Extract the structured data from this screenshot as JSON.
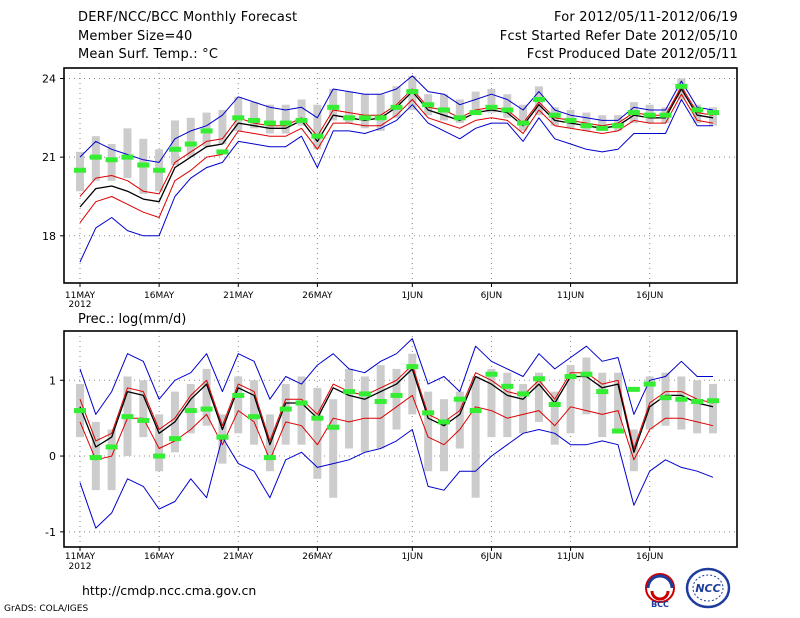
{
  "header": {
    "title": "DERF/NCC/BCC Monthly Forecast",
    "member_size": "Member Size=40",
    "variable": "Mean Surf. Temp.: °C",
    "period": "For 2012/05/11-2012/06/19",
    "refer_date": "Fcst Started Refer Date 2012/05/10",
    "produced_date": "Fcst Produced Date 2012/05/11"
  },
  "footer": {
    "url": "http://cmdp.ncc.cma.gov.cn",
    "grads": "GrADS: COLA/IGES",
    "logo_bcc": "BCC",
    "logo_ncc": "NCC"
  },
  "colors": {
    "max_min": "#0000cc",
    "spread": "#dd0000",
    "mean": "#000000",
    "box": "#cccccc",
    "median": "#33ee33",
    "grid": "#888888"
  },
  "chart_data": [
    {
      "type": "line",
      "title": "Mean Surf. Temp.: °C",
      "x_ticks": [
        "11MAY",
        "16MAY",
        "21MAY",
        "26MAY",
        "1JUN",
        "6JUN",
        "11JUN",
        "16JUN"
      ],
      "x_year": "2012",
      "tick_days": [
        0,
        5,
        10,
        15,
        21,
        26,
        31,
        36
      ],
      "ylim": [
        16.2,
        24.4
      ],
      "yticks": [
        18,
        21,
        24
      ],
      "series": [
        {
          "name": "max",
          "values": [
            21.0,
            21.6,
            21.3,
            21.1,
            20.9,
            20.8,
            21.7,
            22.0,
            22.2,
            22.6,
            23.3,
            23.1,
            22.9,
            22.8,
            22.9,
            22.5,
            23.6,
            23.5,
            23.4,
            23.4,
            23.6,
            24.1,
            23.5,
            23.4,
            23.0,
            23.2,
            23.4,
            23.2,
            22.8,
            23.5,
            22.8,
            22.6,
            22.5,
            22.4,
            22.4,
            22.9,
            22.8,
            22.8,
            23.9,
            22.9,
            22.8
          ]
        },
        {
          "name": "spread_high",
          "values": [
            19.5,
            20.2,
            20.3,
            20.1,
            19.7,
            19.6,
            20.8,
            21.2,
            21.6,
            21.7,
            22.5,
            22.3,
            22.2,
            22.2,
            22.5,
            21.8,
            22.8,
            22.7,
            22.6,
            22.6,
            23.0,
            23.6,
            22.9,
            22.8,
            22.5,
            22.8,
            22.9,
            22.8,
            22.3,
            23.1,
            22.5,
            22.4,
            22.3,
            22.2,
            22.3,
            22.7,
            22.6,
            22.6,
            23.7,
            22.7,
            22.6
          ]
        },
        {
          "name": "mean",
          "values": [
            19.1,
            19.8,
            19.9,
            19.7,
            19.4,
            19.3,
            20.6,
            21.0,
            21.4,
            21.5,
            22.3,
            22.2,
            22.1,
            22.1,
            22.4,
            21.6,
            22.6,
            22.5,
            22.4,
            22.5,
            22.9,
            23.5,
            22.8,
            22.6,
            22.4,
            22.7,
            22.8,
            22.7,
            22.2,
            23.0,
            22.4,
            22.3,
            22.2,
            22.1,
            22.2,
            22.6,
            22.5,
            22.5,
            23.6,
            22.6,
            22.5
          ]
        },
        {
          "name": "spread_low",
          "values": [
            18.5,
            19.3,
            19.5,
            19.2,
            18.9,
            18.7,
            20.1,
            20.5,
            21.0,
            21.1,
            22.0,
            21.9,
            21.8,
            21.8,
            22.1,
            21.3,
            22.3,
            22.3,
            22.2,
            22.2,
            22.6,
            23.2,
            22.5,
            22.3,
            22.1,
            22.4,
            22.5,
            22.4,
            21.9,
            22.8,
            22.2,
            22.1,
            22.0,
            21.9,
            22.0,
            22.4,
            22.3,
            22.3,
            23.4,
            22.4,
            22.3
          ]
        },
        {
          "name": "min",
          "values": [
            17.0,
            18.3,
            18.7,
            18.2,
            18.0,
            18.0,
            19.5,
            20.2,
            20.6,
            20.8,
            21.6,
            21.5,
            21.4,
            21.4,
            21.8,
            20.6,
            22.0,
            22.0,
            21.9,
            22.1,
            22.4,
            23.0,
            22.3,
            22.0,
            21.7,
            22.1,
            22.3,
            22.3,
            21.6,
            22.5,
            21.7,
            21.5,
            21.3,
            21.2,
            21.3,
            21.9,
            21.9,
            21.9,
            23.2,
            22.2,
            22.2
          ]
        }
      ],
      "boxes": [
        [
          19.7,
          21.2
        ],
        [
          20.1,
          21.8
        ],
        [
          20.1,
          21.5
        ],
        [
          20.2,
          22.1
        ],
        [
          19.6,
          21.7
        ],
        [
          19.7,
          21.3
        ],
        [
          20.7,
          22.4
        ],
        [
          21.0,
          22.5
        ],
        [
          21.4,
          22.7
        ],
        [
          21.5,
          22.8
        ],
        [
          22.0,
          23.3
        ],
        [
          22.1,
          23.1
        ],
        [
          21.9,
          23.0
        ],
        [
          21.9,
          23.0
        ],
        [
          22.2,
          23.2
        ],
        [
          21.3,
          23.0
        ],
        [
          22.4,
          23.6
        ],
        [
          22.3,
          23.5
        ],
        [
          22.1,
          23.4
        ],
        [
          22.0,
          23.4
        ],
        [
          22.5,
          23.7
        ],
        [
          22.8,
          24.1
        ],
        [
          22.6,
          23.4
        ],
        [
          22.4,
          23.4
        ],
        [
          22.3,
          23.2
        ],
        [
          22.6,
          23.5
        ],
        [
          22.7,
          23.6
        ],
        [
          22.5,
          23.4
        ],
        [
          22.0,
          23.0
        ],
        [
          22.6,
          23.7
        ],
        [
          22.2,
          22.9
        ],
        [
          22.1,
          22.8
        ],
        [
          22.0,
          22.7
        ],
        [
          22.0,
          22.6
        ],
        [
          22.0,
          22.6
        ],
        [
          22.3,
          23.1
        ],
        [
          22.3,
          23.0
        ],
        [
          22.3,
          22.9
        ],
        [
          23.2,
          24.0
        ],
        [
          22.3,
          23.0
        ],
        [
          22.2,
          22.9
        ]
      ],
      "medians": [
        20.5,
        21.0,
        20.9,
        21.0,
        20.7,
        20.5,
        21.3,
        21.5,
        22.0,
        21.2,
        22.5,
        22.4,
        22.3,
        22.3,
        22.4,
        21.8,
        22.9,
        22.5,
        22.5,
        22.5,
        22.9,
        23.5,
        23.0,
        22.8,
        22.5,
        22.7,
        22.9,
        22.8,
        22.3,
        23.2,
        22.6,
        22.4,
        22.2,
        22.1,
        22.2,
        22.7,
        22.6,
        22.6,
        23.7,
        22.8,
        22.7
      ]
    },
    {
      "type": "line",
      "title": "Prec.: log(mm/d)",
      "x_ticks": [
        "11MAY",
        "16MAY",
        "21MAY",
        "26MAY",
        "1JUN",
        "6JUN",
        "11JUN",
        "16JUN"
      ],
      "x_year": "2012",
      "tick_days": [
        0,
        5,
        10,
        15,
        21,
        26,
        31,
        36
      ],
      "ylim": [
        -1.2,
        1.65
      ],
      "yticks": [
        -1,
        0,
        1
      ],
      "series": [
        {
          "name": "max",
          "values": [
            1.15,
            0.55,
            0.85,
            1.35,
            1.25,
            0.75,
            1.0,
            1.1,
            1.35,
            0.85,
            1.35,
            1.25,
            0.75,
            1.05,
            0.95,
            1.2,
            1.35,
            1.15,
            1.1,
            1.25,
            1.35,
            1.55,
            0.95,
            1.05,
            0.85,
            1.45,
            1.25,
            1.15,
            1.05,
            1.35,
            1.15,
            1.3,
            1.45,
            1.25,
            1.3,
            0.55,
            1.0,
            1.05,
            1.25,
            1.05,
            1.05
          ]
        },
        {
          "name": "spread_high",
          "values": [
            0.75,
            0.2,
            0.3,
            0.9,
            0.85,
            0.35,
            0.5,
            0.8,
            1.0,
            0.4,
            0.95,
            0.85,
            0.2,
            0.75,
            0.75,
            0.55,
            0.95,
            0.85,
            0.8,
            0.9,
            1.0,
            1.2,
            0.55,
            0.45,
            0.6,
            1.1,
            1.0,
            0.85,
            0.8,
            1.0,
            0.75,
            1.1,
            1.1,
            0.95,
            1.0,
            0.1,
            0.7,
            0.85,
            0.85,
            0.75,
            0.7
          ]
        },
        {
          "name": "mean",
          "values": [
            0.65,
            0.12,
            0.25,
            0.85,
            0.8,
            0.3,
            0.45,
            0.75,
            0.95,
            0.35,
            0.9,
            0.8,
            0.15,
            0.7,
            0.7,
            0.5,
            0.9,
            0.8,
            0.75,
            0.85,
            0.95,
            1.15,
            0.5,
            0.4,
            0.55,
            1.05,
            0.95,
            0.8,
            0.75,
            0.95,
            0.7,
            1.05,
            1.05,
            0.9,
            0.95,
            0.05,
            0.65,
            0.8,
            0.8,
            0.7,
            0.65
          ]
        },
        {
          "name": "spread_low",
          "values": [
            0.45,
            -0.05,
            0.0,
            0.5,
            0.5,
            0.1,
            0.2,
            0.35,
            0.55,
            0.15,
            0.6,
            0.45,
            -0.05,
            0.45,
            0.4,
            0.15,
            0.5,
            0.45,
            0.5,
            0.5,
            0.65,
            0.8,
            0.25,
            0.15,
            0.35,
            0.65,
            0.6,
            0.5,
            0.55,
            0.6,
            0.4,
            0.65,
            0.6,
            0.55,
            0.6,
            -0.05,
            0.35,
            0.5,
            0.5,
            0.45,
            0.4
          ]
        },
        {
          "name": "min",
          "values": [
            -0.35,
            -0.95,
            -0.75,
            -0.3,
            -0.4,
            -0.7,
            -0.6,
            -0.3,
            -0.55,
            0.25,
            -0.1,
            -0.2,
            -0.55,
            -0.05,
            0.05,
            -0.15,
            -0.1,
            -0.05,
            0.05,
            0.1,
            0.2,
            0.35,
            -0.4,
            -0.45,
            -0.2,
            -0.2,
            0.0,
            0.15,
            0.3,
            0.35,
            0.3,
            0.15,
            0.15,
            0.2,
            0.15,
            -0.65,
            -0.2,
            -0.05,
            -0.15,
            -0.2,
            -0.28
          ]
        }
      ],
      "boxes": [
        [
          0.25,
          0.95
        ],
        [
          -0.45,
          0.45
        ],
        [
          -0.45,
          0.35
        ],
        [
          0.0,
          1.05
        ],
        [
          0.25,
          1.0
        ],
        [
          -0.2,
          0.55
        ],
        [
          0.05,
          0.85
        ],
        [
          0.3,
          0.95
        ],
        [
          0.4,
          1.15
        ],
        [
          -0.1,
          0.55
        ],
        [
          0.3,
          1.05
        ],
        [
          0.15,
          1.0
        ],
        [
          -0.2,
          0.55
        ],
        [
          0.15,
          0.95
        ],
        [
          0.15,
          1.05
        ],
        [
          -0.3,
          0.9
        ],
        [
          -0.55,
          0.75
        ],
        [
          0.1,
          1.15
        ],
        [
          0.05,
          1.05
        ],
        [
          0.1,
          1.2
        ],
        [
          0.35,
          1.15
        ],
        [
          0.55,
          1.35
        ],
        [
          -0.2,
          0.85
        ],
        [
          -0.2,
          0.75
        ],
        [
          0.1,
          0.85
        ],
        [
          -0.55,
          1.05
        ],
        [
          0.25,
          1.15
        ],
        [
          0.25,
          1.1
        ],
        [
          0.3,
          0.95
        ],
        [
          0.45,
          1.1
        ],
        [
          0.15,
          0.85
        ],
        [
          0.3,
          1.2
        ],
        [
          0.55,
          1.3
        ],
        [
          0.25,
          1.1
        ],
        [
          0.35,
          1.1
        ],
        [
          -0.2,
          0.35
        ],
        [
          0.35,
          1.05
        ],
        [
          0.4,
          1.1
        ],
        [
          0.35,
          1.05
        ],
        [
          0.3,
          1.0
        ],
        [
          0.3,
          0.95
        ]
      ],
      "medians": [
        0.6,
        -0.02,
        0.12,
        0.52,
        0.47,
        0.0,
        0.23,
        0.6,
        0.62,
        0.25,
        0.8,
        0.52,
        -0.02,
        0.62,
        0.7,
        0.5,
        0.38,
        0.85,
        0.82,
        0.72,
        0.8,
        1.18,
        0.57,
        0.45,
        0.75,
        0.6,
        1.08,
        0.92,
        0.82,
        1.02,
        0.68,
        1.05,
        1.08,
        0.85,
        0.33,
        0.88,
        0.95,
        0.77,
        0.75,
        0.72,
        0.73
      ]
    }
  ]
}
